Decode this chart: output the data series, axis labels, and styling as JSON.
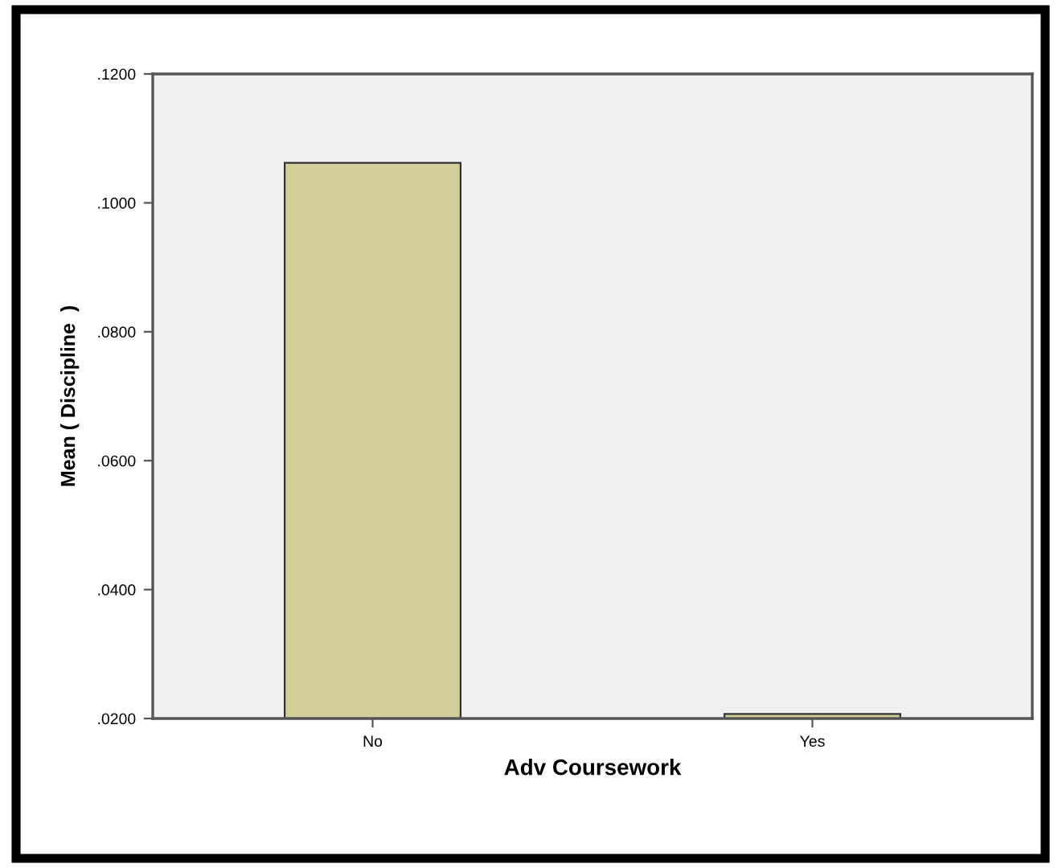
{
  "chart_data": {
    "type": "bar",
    "xlabel": "Adv Coursework",
    "ylabel": "Mean ( Discipline  )",
    "categories": [
      "No",
      "Yes"
    ],
    "values": [
      0.1062,
      0.0207
    ],
    "color": "#d3cf98",
    "ylim": [
      0.02,
      0.12
    ],
    "yticks": [
      {
        "value": 0.02,
        "label": ".0200"
      },
      {
        "value": 0.04,
        "label": ".0400"
      },
      {
        "value": 0.06,
        "label": ".0600"
      },
      {
        "value": 0.08,
        "label": ".0800"
      },
      {
        "value": 0.1,
        "label": ".1000"
      },
      {
        "value": 0.12,
        "label": ".1200"
      }
    ],
    "grid": false
  }
}
